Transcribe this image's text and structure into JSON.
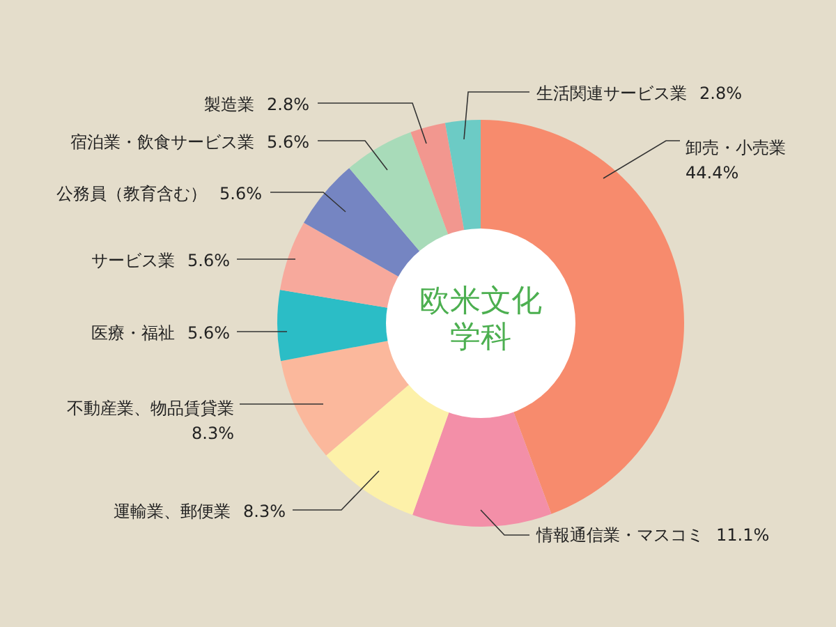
{
  "chart_data": {
    "type": "donut",
    "title": "欧米文化学科",
    "categories": [
      "卸売・小売業",
      "情報通信業・マスコミ",
      "運輸業、郵便業",
      "不動産業、物品賃貸業",
      "医療・福祉",
      "サービス業",
      "公務員（教育含む）",
      "宿泊業・飲食サービス業",
      "製造業",
      "生活関連サービス業"
    ],
    "values": [
      44.4,
      11.1,
      8.3,
      8.3,
      5.6,
      5.6,
      5.6,
      5.6,
      2.8,
      2.8
    ],
    "colors": [
      "#f78b6d",
      "#f38fa8",
      "#fdf1a9",
      "#fbb89c",
      "#2bbdc6",
      "#f7a99c",
      "#7585c2",
      "#a8dbb9",
      "#f2978f",
      "#6ccbc5"
    ],
    "value_labels": [
      "44.4%",
      "11.1%",
      "8.3%",
      "8.3%",
      "5.6%",
      "5.6%",
      "5.6%",
      "5.6%",
      "2.8%",
      "2.8%"
    ]
  }
}
